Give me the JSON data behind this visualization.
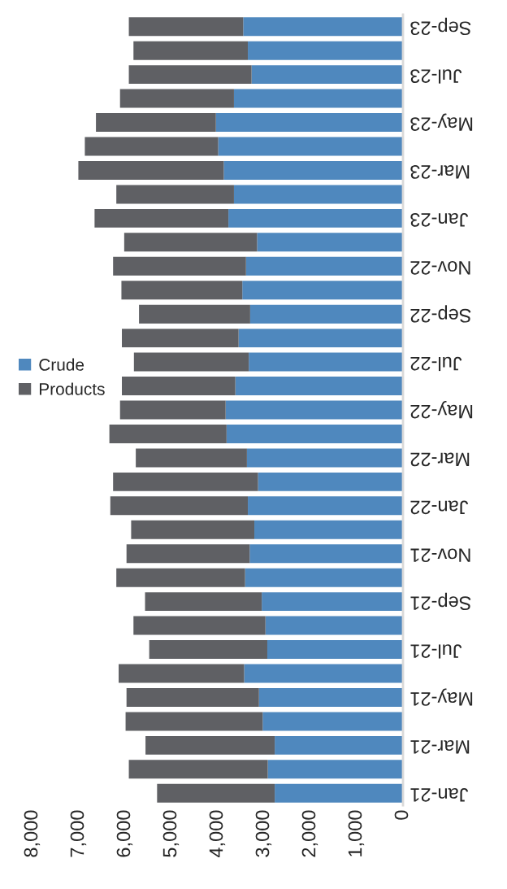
{
  "chart_data": {
    "type": "bar",
    "orientation": "horizontal",
    "stacked": true,
    "categories": [
      "Sep-23",
      null,
      "Jul-23",
      null,
      "May-23",
      null,
      "Mar-23",
      null,
      "Jan-23",
      null,
      "Nov-22",
      null,
      "Sep-22",
      null,
      "Jul-22",
      null,
      "May-22",
      null,
      "Mar-22",
      null,
      "Jan-22",
      null,
      "Nov-21",
      null,
      "Sep-21",
      null,
      "Jul-21",
      null,
      "May-21",
      null,
      "Mar-21",
      null,
      "Jan-21"
    ],
    "series": [
      {
        "name": "Crude",
        "color": "#4f88be",
        "values": [
          3450,
          3350,
          3270,
          3650,
          4040,
          3990,
          3870,
          3650,
          3770,
          3150,
          3390,
          3470,
          3300,
          3550,
          3330,
          3620,
          3830,
          3810,
          3370,
          3130,
          3350,
          3210,
          3310,
          3410,
          3050,
          2970,
          2930,
          3430,
          3110,
          3030,
          2770,
          2920,
          2770
        ]
      },
      {
        "name": "Products",
        "color": "#5f6064",
        "values": [
          2470,
          2470,
          2650,
          2460,
          2590,
          2880,
          3140,
          2540,
          2890,
          2870,
          2870,
          2610,
          2400,
          2520,
          2480,
          2450,
          2280,
          2530,
          2400,
          3130,
          2970,
          2660,
          2660,
          2780,
          2520,
          2850,
          2550,
          2710,
          2860,
          2960,
          2790,
          3000,
          2540
        ]
      }
    ],
    "xlim": [
      8000,
      0
    ],
    "xticks": [
      {
        "value": 8000,
        "label": "8,000"
      },
      {
        "value": 7000,
        "label": "7,000"
      },
      {
        "value": 6000,
        "label": "6,000"
      },
      {
        "value": 5000,
        "label": "5,000"
      },
      {
        "value": 4000,
        "label": "4,000"
      },
      {
        "value": 3000,
        "label": "3,000"
      },
      {
        "value": 2000,
        "label": "2,000"
      },
      {
        "value": 1000,
        "label": "1,000"
      },
      0
    ],
    "legend": "left",
    "grid": false
  }
}
